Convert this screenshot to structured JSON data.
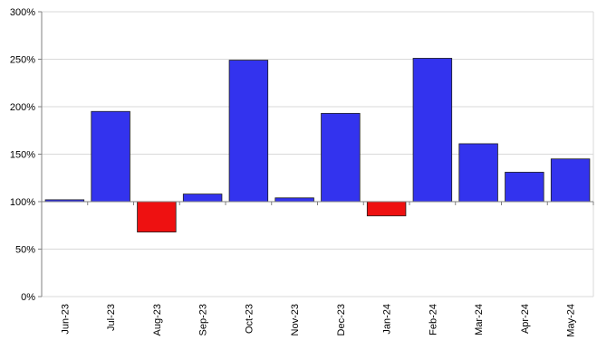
{
  "chart_data": {
    "type": "bar",
    "categories": [
      "Jun-23",
      "Jul-23",
      "Aug-23",
      "Sep-23",
      "Oct-23",
      "Nov-23",
      "Dec-23",
      "Jan-24",
      "Feb-24",
      "Mar-24",
      "Apr-24",
      "May-24"
    ],
    "values": [
      102,
      195,
      68,
      108,
      249,
      104,
      193,
      85,
      251,
      161,
      131,
      145
    ],
    "baseline": 100,
    "ylim": [
      0,
      300
    ],
    "yticks": [
      "0%",
      "50%",
      "100%",
      "150%",
      "200%",
      "250%",
      "300%"
    ],
    "ytick_values": [
      0,
      50,
      100,
      150,
      200,
      250,
      300
    ],
    "grid": true,
    "colors": {
      "above": "#3333ee",
      "below": "#ee1111",
      "grid": "#d9d9d9",
      "axis": "#808080"
    }
  }
}
